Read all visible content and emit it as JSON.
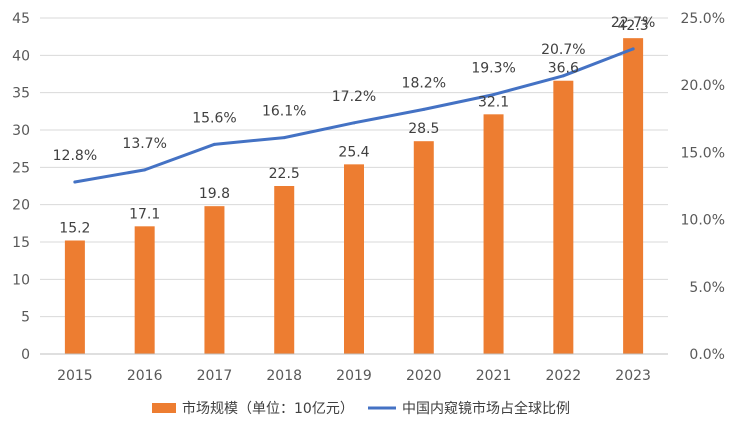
{
  "chart_data": {
    "type": "bar",
    "categories": [
      "2015",
      "2016",
      "2017",
      "2018",
      "2019",
      "2020",
      "2021",
      "2022",
      "2023"
    ],
    "series": [
      {
        "name": "市场规模（单位：10亿元）",
        "type": "bar",
        "axis": "left",
        "color": "#ED7D31",
        "values": [
          15.2,
          17.1,
          19.8,
          22.5,
          25.4,
          28.5,
          32.1,
          36.6,
          42.3
        ],
        "labels": [
          "15.2",
          "17.1",
          "19.8",
          "22.5",
          "25.4",
          "28.5",
          "32.1",
          "36.6",
          "42.3"
        ]
      },
      {
        "name": "中国内窥镜市场占全球比例",
        "type": "line",
        "axis": "right",
        "color": "#4472C4",
        "values": [
          12.8,
          13.7,
          15.6,
          16.1,
          17.2,
          18.2,
          19.3,
          20.7,
          22.7
        ],
        "labels": [
          "12.8%",
          "13.7%",
          "15.6%",
          "16.1%",
          "17.2%",
          "18.2%",
          "19.3%",
          "20.7%",
          "22.7%"
        ]
      }
    ],
    "y_left": {
      "ylim": [
        0,
        45
      ],
      "ticks": [
        "0",
        "5",
        "10",
        "15",
        "20",
        "25",
        "30",
        "35",
        "40",
        "45"
      ]
    },
    "y_right": {
      "ylim": [
        0,
        25
      ],
      "ticks": [
        "0.0%",
        "5.0%",
        "10.0%",
        "15.0%",
        "20.0%",
        "25.0%"
      ]
    },
    "grid": true,
    "legend": "bottom"
  }
}
